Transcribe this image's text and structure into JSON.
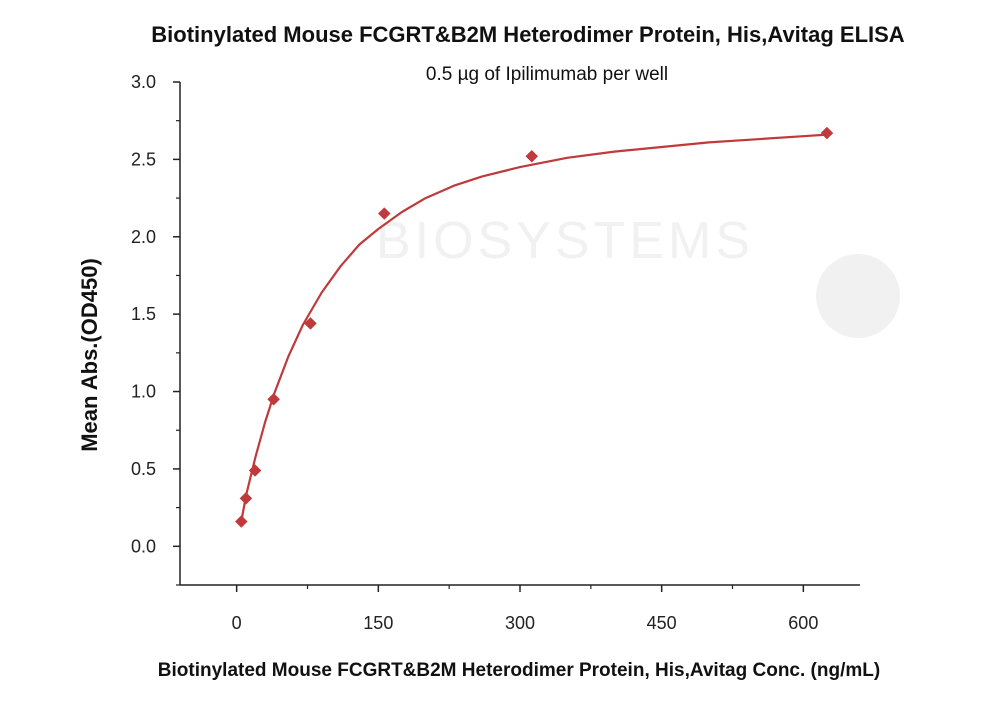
{
  "chart_data": {
    "type": "scatter",
    "title": "Biotinylated Mouse FCGRT&B2M Heterodimer Protein, His,Avitag ELISA",
    "subtitle": "0.5 µg of Ipilimumab per well",
    "xlabel": "Biotinylated Mouse FCGRT&B2M Heterodimer Protein, His,Avitag Conc. (ng/mL)",
    "ylabel": "Mean Abs.(OD450)",
    "xlim": [
      -60,
      660
    ],
    "ylim": [
      -0.25,
      3.0
    ],
    "xticks": [
      0,
      150,
      300,
      450,
      600
    ],
    "yticks": [
      0.0,
      0.5,
      1.0,
      1.5,
      2.0,
      2.5,
      3.0
    ],
    "grid": false,
    "series": [
      {
        "color": "#c0393b",
        "x": [
          4.9,
          9.8,
          19.5,
          39.1,
          78.1,
          156.3,
          312.5,
          625
        ],
        "y": [
          0.16,
          0.31,
          0.49,
          0.95,
          1.44,
          2.15,
          2.52,
          2.67
        ]
      }
    ],
    "fit_curve": {
      "color": "#c0393b",
      "x": [
        4.9,
        10,
        20,
        30,
        40,
        55,
        70,
        90,
        110,
        130,
        150,
        175,
        200,
        230,
        260,
        300,
        350,
        400,
        450,
        500,
        550,
        600,
        625
      ],
      "y": [
        0.16,
        0.33,
        0.58,
        0.8,
        0.99,
        1.23,
        1.43,
        1.64,
        1.81,
        1.95,
        2.05,
        2.16,
        2.25,
        2.33,
        2.39,
        2.45,
        2.51,
        2.55,
        2.58,
        2.61,
        2.63,
        2.65,
        2.66
      ]
    },
    "watermark": "BIOSYSTEMS"
  }
}
